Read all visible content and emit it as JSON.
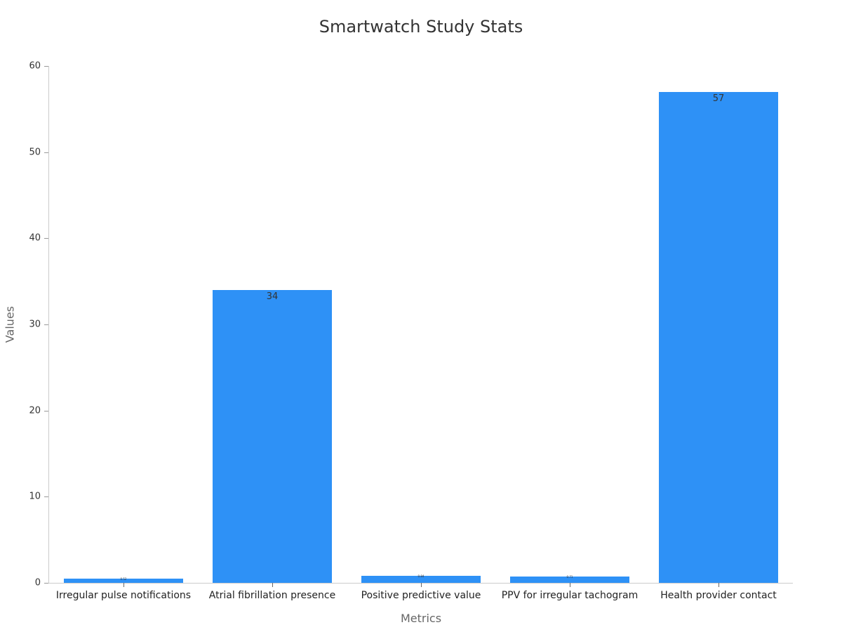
{
  "chart_data": {
    "type": "bar",
    "title": "Smartwatch Study Stats",
    "xlabel": "Metrics",
    "ylabel": "Values",
    "ylim": [
      0,
      60
    ],
    "yticks": [
      0,
      10,
      20,
      30,
      40,
      50,
      60
    ],
    "grid": false,
    "legend": null,
    "categories": [
      "Irregular pulse notifications",
      "Atrial fibrillation presence",
      "Positive predictive value",
      "PPV for irregular tachogram",
      "Health provider contact"
    ],
    "values": [
      0.52,
      34,
      0.84,
      0.71,
      57
    ],
    "data_labels": [
      "0.52",
      "34",
      "0.84",
      "0.71",
      "57"
    ],
    "bar_color": "#2e91f6"
  }
}
